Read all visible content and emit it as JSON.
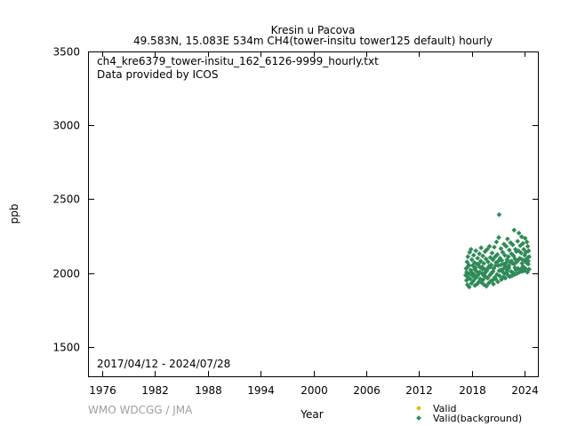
{
  "chart_data": {
    "type": "scatter",
    "title": "Kresin u Pacova",
    "subtitle": "49.583N, 15.083E 534m    CH4(tower-insitu tower125 default) hourly",
    "file_label": "ch4_kre6379_tower-insitu_162_6126-9999_hourly.txt",
    "provider_label": "Data provided by ICOS",
    "date_range_label": "2017/04/12 - 2024/07/28",
    "xlabel": "Year",
    "ylabel": "ppb",
    "xlim": [
      1974.5,
      2025.5
    ],
    "ylim": [
      1300,
      3500
    ],
    "x_ticks": [
      1976,
      1982,
      1988,
      1994,
      2000,
      2006,
      2012,
      2018,
      2024
    ],
    "y_ticks": [
      1500,
      2000,
      2500,
      3000,
      3500
    ],
    "grid": false,
    "legend_position": "bottom-right",
    "series": [
      {
        "name": "Valid",
        "color": "#e6b800",
        "marker": "diamond",
        "points": []
      },
      {
        "name": "Valid(background)",
        "color": "#2e8b57",
        "marker": "diamond",
        "points": [
          [
            2017.3,
            1985
          ],
          [
            2017.35,
            2030
          ],
          [
            2017.4,
            1950
          ],
          [
            2017.45,
            2075
          ],
          [
            2017.5,
            1920
          ],
          [
            2017.55,
            2110
          ],
          [
            2017.6,
            1995
          ],
          [
            2017.65,
            2055
          ],
          [
            2017.7,
            1905
          ],
          [
            2017.75,
            2140
          ],
          [
            2017.8,
            1960
          ],
          [
            2017.85,
            2020
          ],
          [
            2017.9,
            2160
          ],
          [
            2017.95,
            1930
          ],
          [
            2018.0,
            2090
          ],
          [
            2018.05,
            2000
          ],
          [
            2018.1,
            2050
          ],
          [
            2018.15,
            1945
          ],
          [
            2018.2,
            2120
          ],
          [
            2018.25,
            1990
          ],
          [
            2018.3,
            2070
          ],
          [
            2018.35,
            1915
          ],
          [
            2018.4,
            2035
          ],
          [
            2018.45,
            2150
          ],
          [
            2018.5,
            1970
          ],
          [
            2018.55,
            2010
          ],
          [
            2018.6,
            1925
          ],
          [
            2018.65,
            2100
          ],
          [
            2018.7,
            1985
          ],
          [
            2018.75,
            2060
          ],
          [
            2018.8,
            1940
          ],
          [
            2018.85,
            2130
          ],
          [
            2018.9,
            2005
          ],
          [
            2018.95,
            1960
          ],
          [
            2019.0,
            2080
          ],
          [
            2019.05,
            2170
          ],
          [
            2019.1,
            1935
          ],
          [
            2019.15,
            2040
          ],
          [
            2019.2,
            1995
          ],
          [
            2019.25,
            2115
          ],
          [
            2019.3,
            1955
          ],
          [
            2019.35,
            2065
          ],
          [
            2019.4,
            1920
          ],
          [
            2019.45,
            2025
          ],
          [
            2019.5,
            2145
          ],
          [
            2019.55,
            1975
          ],
          [
            2019.6,
            2095
          ],
          [
            2019.65,
            1910
          ],
          [
            2019.7,
            2015
          ],
          [
            2019.75,
            2160
          ],
          [
            2019.8,
            1965
          ],
          [
            2019.85,
            2075
          ],
          [
            2019.9,
            1930
          ],
          [
            2019.95,
            2045
          ],
          [
            2020.0,
            2180
          ],
          [
            2020.05,
            1985
          ],
          [
            2020.1,
            2105
          ],
          [
            2020.15,
            1945
          ],
          [
            2020.2,
            2055
          ],
          [
            2020.25,
            2000
          ],
          [
            2020.3,
            2135
          ],
          [
            2020.35,
            1950
          ],
          [
            2020.4,
            2090
          ],
          [
            2020.45,
            1925
          ],
          [
            2020.5,
            2030
          ],
          [
            2020.55,
            2175
          ],
          [
            2020.6,
            1970
          ],
          [
            2020.65,
            2110
          ],
          [
            2020.7,
            1960
          ],
          [
            2020.75,
            2070
          ],
          [
            2020.8,
            2210
          ],
          [
            2020.85,
            1990
          ],
          [
            2020.9,
            2125
          ],
          [
            2020.95,
            1940
          ],
          [
            2021.0,
            2050
          ],
          [
            2021.05,
            2240
          ],
          [
            2021.1,
            2395
          ],
          [
            2021.15,
            1980
          ],
          [
            2021.2,
            2100
          ],
          [
            2021.25,
            2020
          ],
          [
            2021.3,
            2165
          ],
          [
            2021.35,
            1955
          ],
          [
            2021.4,
            2085
          ],
          [
            2021.45,
            2010
          ],
          [
            2021.5,
            2140
          ],
          [
            2021.55,
            1970
          ],
          [
            2021.6,
            2060
          ],
          [
            2021.65,
            2195
          ],
          [
            2021.7,
            1995
          ],
          [
            2021.75,
            2120
          ],
          [
            2021.8,
            1965
          ],
          [
            2021.85,
            2045
          ],
          [
            2021.9,
            2180
          ],
          [
            2021.95,
            2005
          ],
          [
            2022.0,
            2090
          ],
          [
            2022.05,
            2230
          ],
          [
            2022.1,
            1985
          ],
          [
            2022.15,
            2110
          ],
          [
            2022.2,
            2035
          ],
          [
            2022.25,
            2155
          ],
          [
            2022.3,
            1975
          ],
          [
            2022.35,
            2075
          ],
          [
            2022.4,
            2205
          ],
          [
            2022.45,
            2010
          ],
          [
            2022.5,
            2130
          ],
          [
            2022.55,
            1980
          ],
          [
            2022.6,
            2065
          ],
          [
            2022.65,
            2190
          ],
          [
            2022.7,
            2000
          ],
          [
            2022.75,
            2115
          ],
          [
            2022.8,
            2290
          ],
          [
            2022.85,
            1990
          ],
          [
            2022.9,
            2095
          ],
          [
            2022.95,
            2160
          ],
          [
            2023.0,
            2020
          ],
          [
            2023.05,
            2145
          ],
          [
            2023.1,
            1995
          ],
          [
            2023.15,
            2080
          ],
          [
            2023.2,
            2215
          ],
          [
            2023.25,
            2030
          ],
          [
            2023.3,
            2150
          ],
          [
            2023.35,
            2270
          ],
          [
            2023.4,
            2005
          ],
          [
            2023.45,
            2100
          ],
          [
            2023.5,
            2185
          ],
          [
            2023.55,
            2025
          ],
          [
            2023.6,
            2135
          ],
          [
            2023.65,
            2245
          ],
          [
            2023.7,
            2010
          ],
          [
            2023.75,
            2090
          ],
          [
            2023.8,
            2200
          ],
          [
            2023.85,
            2040
          ],
          [
            2023.9,
            2160
          ],
          [
            2023.95,
            2015
          ],
          [
            2024.0,
            2120
          ],
          [
            2024.05,
            2235
          ],
          [
            2024.1,
            2030
          ],
          [
            2024.15,
            2140
          ],
          [
            2024.2,
            2070
          ],
          [
            2024.25,
            2210
          ],
          [
            2024.3,
            2005
          ],
          [
            2024.35,
            2180
          ],
          [
            2024.4,
            2060
          ],
          [
            2024.45,
            2150
          ],
          [
            2024.5,
            2025
          ],
          [
            2017.4,
            2005
          ],
          [
            2017.6,
            2045
          ],
          [
            2017.8,
            1995
          ],
          [
            2018.1,
            1980
          ],
          [
            2018.3,
            2025
          ],
          [
            2018.6,
            2060
          ],
          [
            2018.9,
            2040
          ],
          [
            2019.2,
            2025
          ],
          [
            2019.5,
            2000
          ],
          [
            2019.8,
            2030
          ],
          [
            2020.1,
            2040
          ],
          [
            2020.4,
            2010
          ],
          [
            2020.7,
            2050
          ],
          [
            2021.0,
            2080
          ],
          [
            2021.3,
            2055
          ],
          [
            2021.6,
            2030
          ],
          [
            2021.9,
            2070
          ],
          [
            2022.2,
            2050
          ],
          [
            2022.5,
            2080
          ],
          [
            2022.8,
            2060
          ],
          [
            2023.1,
            2075
          ],
          [
            2023.4,
            2095
          ],
          [
            2023.7,
            2065
          ],
          [
            2024.0,
            2085
          ],
          [
            2024.3,
            2100
          ],
          [
            2017.5,
            1975
          ],
          [
            2018.4,
            1965
          ],
          [
            2019.3,
            1985
          ],
          [
            2020.2,
            1995
          ],
          [
            2021.1,
            2015
          ],
          [
            2022.0,
            2020
          ],
          [
            2022.9,
            2035
          ],
          [
            2023.8,
            2045
          ],
          [
            2024.4,
            2080
          ],
          [
            2024.5,
            2110
          ]
        ]
      }
    ]
  },
  "footer": {
    "credit": "WMO WDCGG / JMA"
  }
}
